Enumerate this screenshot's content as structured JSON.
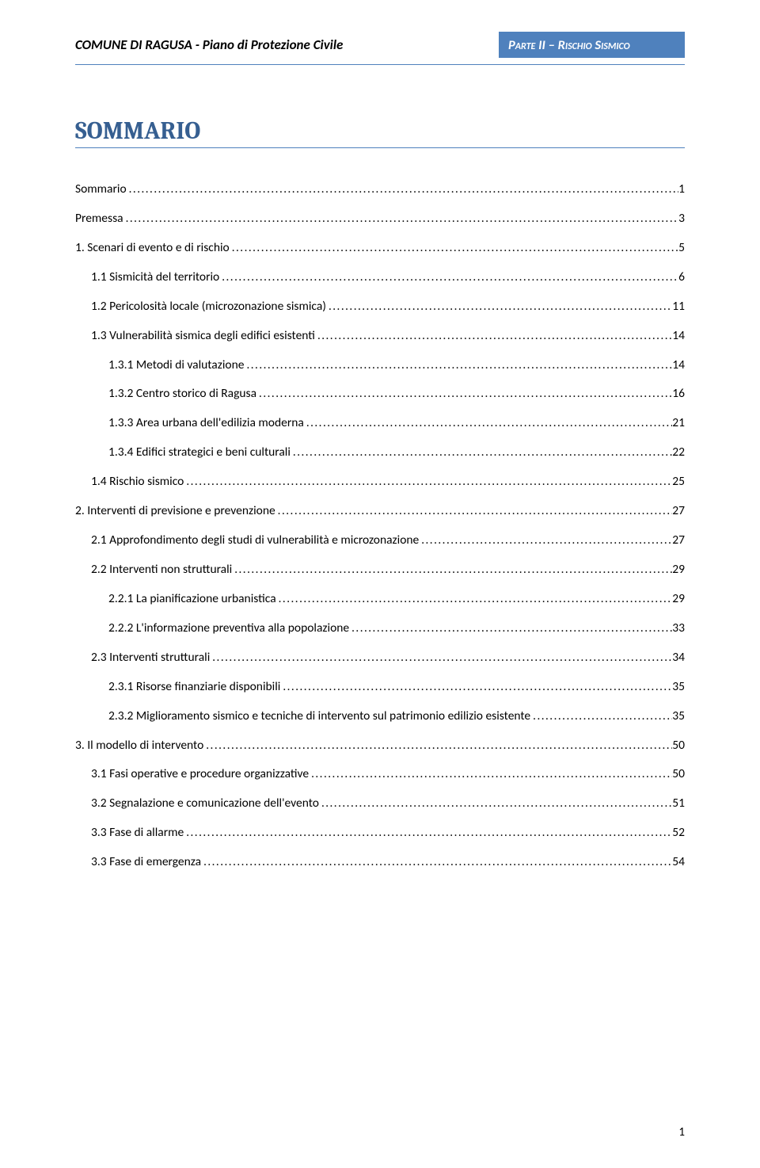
{
  "header": {
    "left": "COMUNE DI RAGUSA - Piano di Protezione Civile",
    "right": "Parte II – Rischio Sismico"
  },
  "title": "SOMMARIO",
  "page_number": "1",
  "colors": {
    "accent": "#4f81bd",
    "heading": "#365f91",
    "text": "#000000",
    "background": "#ffffff",
    "tab_bg": "#4f81bd",
    "tab_text": "#ffffff"
  },
  "typography": {
    "body_font": "Calibri",
    "heading_font": "Cambria",
    "body_size_pt": 11,
    "title_size_pt": 22,
    "header_size_pt": 12
  },
  "toc": [
    {
      "level": 1,
      "label": "Sommario",
      "page": "1"
    },
    {
      "level": 1,
      "label": "Premessa",
      "page": "3"
    },
    {
      "level": 1,
      "label": "1. Scenari di evento e di rischio",
      "page": "5"
    },
    {
      "level": 2,
      "label": "1.1 Sismicità del territorio",
      "page": "6"
    },
    {
      "level": 2,
      "label": "1.2 Pericolosità locale (microzonazione sismica)",
      "page": "11"
    },
    {
      "level": 2,
      "label": "1.3 Vulnerabilità sismica degli edifici esistenti",
      "page": "14"
    },
    {
      "level": 3,
      "label": "1.3.1 Metodi di valutazione",
      "page": "14"
    },
    {
      "level": 3,
      "label": "1.3.2 Centro storico di Ragusa",
      "page": "16"
    },
    {
      "level": 3,
      "label": "1.3.3 Area urbana dell'edilizia moderna",
      "page": "21"
    },
    {
      "level": 3,
      "label": "1.3.4 Edifici strategici e beni culturali",
      "page": "22"
    },
    {
      "level": 2,
      "label": "1.4 Rischio sismico",
      "page": "25"
    },
    {
      "level": 1,
      "label": "2. Interventi di previsione e prevenzione",
      "page": "27"
    },
    {
      "level": 2,
      "label": "2.1 Approfondimento degli studi di vulnerabilità e microzonazione",
      "page": "27"
    },
    {
      "level": 2,
      "label": "2.2 Interventi non strutturali",
      "page": "29"
    },
    {
      "level": 3,
      "label": "2.2.1 La pianificazione urbanistica",
      "page": "29"
    },
    {
      "level": 3,
      "label": "2.2.2 L'informazione preventiva alla popolazione",
      "page": "33"
    },
    {
      "level": 2,
      "label": "2.3 Interventi strutturali",
      "page": "34"
    },
    {
      "level": 3,
      "label": "2.3.1 Risorse finanziarie disponibili",
      "page": "35"
    },
    {
      "level": 3,
      "label": "2.3.2 Miglioramento sismico e tecniche di intervento sul patrimonio edilizio esistente",
      "page": "35"
    },
    {
      "level": 1,
      "label": "3. Il modello di intervento",
      "page": "50"
    },
    {
      "level": 2,
      "label": "3.1 Fasi operative e procedure organizzative",
      "page": "50"
    },
    {
      "level": 2,
      "label": "3.2 Segnalazione e comunicazione dell'evento",
      "page": "51"
    },
    {
      "level": 2,
      "label": "3.3 Fase di allarme",
      "page": "52"
    },
    {
      "level": 2,
      "label": "3.3 Fase di emergenza",
      "page": "54"
    }
  ]
}
